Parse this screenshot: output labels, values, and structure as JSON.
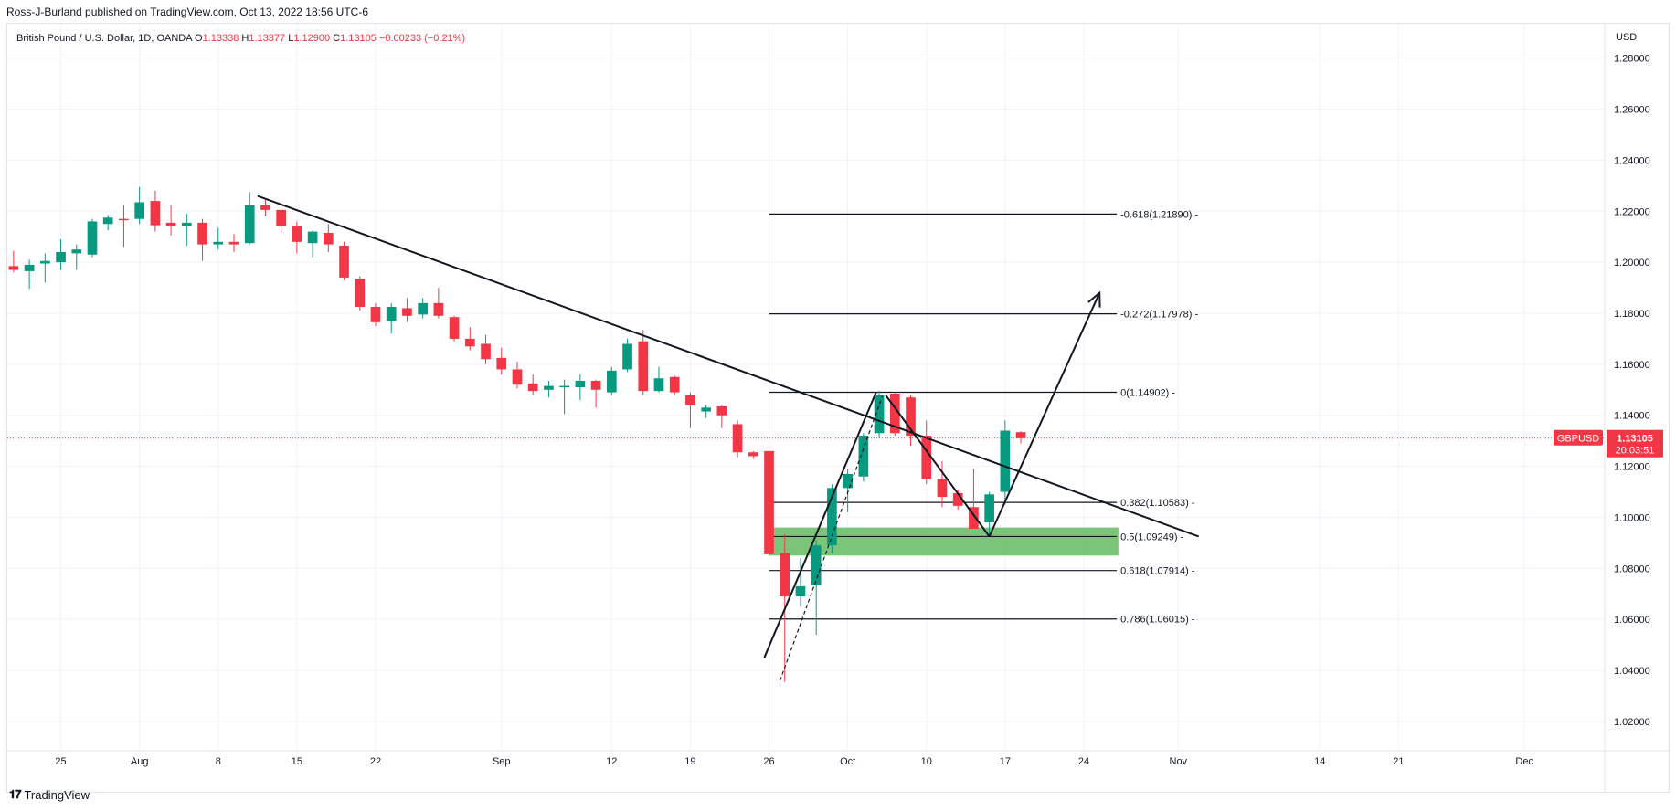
{
  "publisher": "Ross-J-Burland published on TradingView.com, Oct 13, 2022 18:56 UTC-6",
  "legend": {
    "symbol": "British Pound / U.S. Dollar, 1D, OANDA",
    "o_label": "O",
    "o": "1.13338",
    "h_label": "H",
    "h": "1.13377",
    "l_label": "L",
    "l": "1.12900",
    "c_label": "C",
    "c": "1.13105",
    "change": "−0.00233 (−0.21%)"
  },
  "currency": "USD",
  "footer": {
    "logo_text": "TradingView",
    "logo_icon": "tradingview-logo-icon"
  },
  "colors": {
    "up": "#26a69a",
    "up_fill": "#089981",
    "down": "#f23645",
    "zone": "#6bbf6b",
    "last_price": "#f23645",
    "line": "#131722"
  },
  "chart_data": {
    "type": "candlestick",
    "symbol": "GBPUSD",
    "timeframe": "1D",
    "y_ticks": [
      "1.28000",
      "1.26000",
      "1.24000",
      "1.22000",
      "1.20000",
      "1.18000",
      "1.16000",
      "1.14000",
      "1.12000",
      "1.10000",
      "1.08000",
      "1.06000",
      "1.04000",
      "1.02000"
    ],
    "ylim": [
      1.0085,
      1.2935
    ],
    "x_ticks": [
      {
        "label": "25",
        "i": 0
      },
      {
        "label": "Aug",
        "i": 5
      },
      {
        "label": "8",
        "i": 10
      },
      {
        "label": "15",
        "i": 15
      },
      {
        "label": "22",
        "i": 20
      },
      {
        "label": "Sep",
        "i": 28
      },
      {
        "label": "12",
        "i": 35
      },
      {
        "label": "19",
        "i": 40
      },
      {
        "label": "26",
        "i": 45
      },
      {
        "label": "Oct",
        "i": 50
      },
      {
        "label": "10",
        "i": 55
      },
      {
        "label": "17",
        "i": 60
      },
      {
        "label": "24",
        "i": 65
      },
      {
        "label": "Nov",
        "i": 71
      },
      {
        "label": "14",
        "i": 80
      },
      {
        "label": "21",
        "i": 85
      },
      {
        "label": "Dec",
        "i": 93
      }
    ],
    "xlim": [
      -3.4,
      98.1
    ],
    "candles": [
      {
        "i": -3,
        "o": 1.1985,
        "h": 1.2045,
        "l": 1.196,
        "c": 1.197
      },
      {
        "i": -2,
        "o": 1.1965,
        "h": 1.201,
        "l": 1.1895,
        "c": 1.199
      },
      {
        "i": -1,
        "o": 1.1995,
        "h": 1.2035,
        "l": 1.192,
        "c": 1.2005
      },
      {
        "i": 0,
        "o": 1.2,
        "h": 1.209,
        "l": 1.197,
        "c": 1.204
      },
      {
        "i": 1,
        "o": 1.2035,
        "h": 1.207,
        "l": 1.197,
        "c": 1.205
      },
      {
        "i": 2,
        "o": 1.203,
        "h": 1.217,
        "l": 1.202,
        "c": 1.216
      },
      {
        "i": 3,
        "o": 1.215,
        "h": 1.2185,
        "l": 1.2125,
        "c": 1.2175
      },
      {
        "i": 4,
        "o": 1.217,
        "h": 1.2225,
        "l": 1.206,
        "c": 1.2165
      },
      {
        "i": 5,
        "o": 1.217,
        "h": 1.2295,
        "l": 1.215,
        "c": 1.2235
      },
      {
        "i": 6,
        "o": 1.224,
        "h": 1.228,
        "l": 1.212,
        "c": 1.2145
      },
      {
        "i": 7,
        "o": 1.2155,
        "h": 1.2225,
        "l": 1.2105,
        "c": 1.214
      },
      {
        "i": 8,
        "o": 1.214,
        "h": 1.219,
        "l": 1.2065,
        "c": 1.2155
      },
      {
        "i": 9,
        "o": 1.2155,
        "h": 1.217,
        "l": 1.2005,
        "c": 1.207
      },
      {
        "i": 10,
        "o": 1.207,
        "h": 1.2135,
        "l": 1.205,
        "c": 1.208
      },
      {
        "i": 11,
        "o": 1.208,
        "h": 1.211,
        "l": 1.204,
        "c": 1.207
      },
      {
        "i": 12,
        "o": 1.2075,
        "h": 1.2275,
        "l": 1.207,
        "c": 1.2225
      },
      {
        "i": 13,
        "o": 1.2225,
        "h": 1.2245,
        "l": 1.218,
        "c": 1.2205
      },
      {
        "i": 14,
        "o": 1.2205,
        "h": 1.222,
        "l": 1.2115,
        "c": 1.214
      },
      {
        "i": 15,
        "o": 1.214,
        "h": 1.216,
        "l": 1.2035,
        "c": 1.208
      },
      {
        "i": 16,
        "o": 1.2075,
        "h": 1.2125,
        "l": 1.202,
        "c": 1.212
      },
      {
        "i": 17,
        "o": 1.2115,
        "h": 1.215,
        "l": 1.204,
        "c": 1.207
      },
      {
        "i": 18,
        "o": 1.2065,
        "h": 1.208,
        "l": 1.193,
        "c": 1.194
      },
      {
        "i": 19,
        "o": 1.1935,
        "h": 1.1945,
        "l": 1.181,
        "c": 1.1825
      },
      {
        "i": 20,
        "o": 1.1825,
        "h": 1.184,
        "l": 1.175,
        "c": 1.1765
      },
      {
        "i": 21,
        "o": 1.177,
        "h": 1.184,
        "l": 1.172,
        "c": 1.1825
      },
      {
        "i": 22,
        "o": 1.182,
        "h": 1.186,
        "l": 1.1765,
        "c": 1.179
      },
      {
        "i": 23,
        "o": 1.1795,
        "h": 1.186,
        "l": 1.178,
        "c": 1.184
      },
      {
        "i": 24,
        "o": 1.184,
        "h": 1.19,
        "l": 1.178,
        "c": 1.179
      },
      {
        "i": 25,
        "o": 1.1785,
        "h": 1.179,
        "l": 1.169,
        "c": 1.17
      },
      {
        "i": 26,
        "o": 1.17,
        "h": 1.1745,
        "l": 1.1655,
        "c": 1.167
      },
      {
        "i": 27,
        "o": 1.168,
        "h": 1.1715,
        "l": 1.16,
        "c": 1.162
      },
      {
        "i": 28,
        "o": 1.1625,
        "h": 1.1665,
        "l": 1.156,
        "c": 1.158
      },
      {
        "i": 29,
        "o": 1.158,
        "h": 1.161,
        "l": 1.1505,
        "c": 1.152
      },
      {
        "i": 30,
        "o": 1.1525,
        "h": 1.156,
        "l": 1.148,
        "c": 1.1495
      },
      {
        "i": 31,
        "o": 1.15,
        "h": 1.1535,
        "l": 1.147,
        "c": 1.1515
      },
      {
        "i": 32,
        "o": 1.151,
        "h": 1.154,
        "l": 1.1405,
        "c": 1.1515
      },
      {
        "i": 33,
        "o": 1.151,
        "h": 1.156,
        "l": 1.146,
        "c": 1.1535
      },
      {
        "i": 34,
        "o": 1.1535,
        "h": 1.154,
        "l": 1.143,
        "c": 1.15
      },
      {
        "i": 35,
        "o": 1.149,
        "h": 1.159,
        "l": 1.148,
        "c": 1.1575
      },
      {
        "i": 36,
        "o": 1.158,
        "h": 1.17,
        "l": 1.157,
        "c": 1.168
      },
      {
        "i": 37,
        "o": 1.169,
        "h": 1.1735,
        "l": 1.148,
        "c": 1.1495
      },
      {
        "i": 38,
        "o": 1.1495,
        "h": 1.159,
        "l": 1.149,
        "c": 1.1545
      },
      {
        "i": 39,
        "o": 1.155,
        "h": 1.1555,
        "l": 1.148,
        "c": 1.149
      },
      {
        "i": 40,
        "o": 1.148,
        "h": 1.149,
        "l": 1.135,
        "c": 1.144
      },
      {
        "i": 41,
        "o": 1.1415,
        "h": 1.144,
        "l": 1.139,
        "c": 1.143
      },
      {
        "i": 42,
        "o": 1.1435,
        "h": 1.144,
        "l": 1.135,
        "c": 1.14
      },
      {
        "i": 43,
        "o": 1.1365,
        "h": 1.138,
        "l": 1.1235,
        "c": 1.1255
      },
      {
        "i": 44,
        "o": 1.1255,
        "h": 1.126,
        "l": 1.123,
        "c": 1.124
      },
      {
        "i": 45,
        "o": 1.126,
        "h": 1.1275,
        "l": 1.085,
        "c": 1.0855
      },
      {
        "i": 46,
        "o": 1.086,
        "h": 1.0935,
        "l": 1.0355,
        "c": 1.069
      },
      {
        "i": 47,
        "o": 1.069,
        "h": 1.084,
        "l": 1.065,
        "c": 1.073
      },
      {
        "i": 48,
        "o": 1.0735,
        "h": 1.091,
        "l": 1.054,
        "c": 1.089
      },
      {
        "i": 49,
        "o": 1.089,
        "h": 1.113,
        "l": 1.086,
        "c": 1.1115
      },
      {
        "i": 50,
        "o": 1.1115,
        "h": 1.119,
        "l": 1.102,
        "c": 1.117
      },
      {
        "i": 51,
        "o": 1.116,
        "h": 1.133,
        "l": 1.114,
        "c": 1.132
      },
      {
        "i": 52,
        "o": 1.133,
        "h": 1.1495,
        "l": 1.131,
        "c": 1.148
      },
      {
        "i": 53,
        "o": 1.1485,
        "h": 1.149,
        "l": 1.132,
        "c": 1.133
      },
      {
        "i": 54,
        "o": 1.147,
        "h": 1.148,
        "l": 1.128,
        "c": 1.132
      },
      {
        "i": 55,
        "o": 1.132,
        "h": 1.138,
        "l": 1.113,
        "c": 1.115
      },
      {
        "i": 56,
        "o": 1.115,
        "h": 1.122,
        "l": 1.104,
        "c": 1.108
      },
      {
        "i": 57,
        "o": 1.1095,
        "h": 1.111,
        "l": 1.103,
        "c": 1.1045
      },
      {
        "i": 58,
        "o": 1.104,
        "h": 1.119,
        "l": 1.0955,
        "c": 1.0955
      },
      {
        "i": 59,
        "o": 1.098,
        "h": 1.11,
        "l": 1.0925,
        "c": 1.109
      },
      {
        "i": 60,
        "o": 1.11,
        "h": 1.138,
        "l": 1.105,
        "c": 1.134
      },
      {
        "i": 61,
        "o": 1.13338,
        "h": 1.13377,
        "l": 1.129,
        "c": 1.13105
      }
    ],
    "last_price": {
      "label": "GBPUSD",
      "value": "1.13105",
      "countdown": "20:03:51",
      "y": 1.13105
    },
    "fib_levels": [
      {
        "label": "-0.618(1.21890)",
        "y": 1.2189
      },
      {
        "label": "-0.272(1.17978)",
        "y": 1.17978
      },
      {
        "label": "0(1.14902)",
        "y": 1.14902
      },
      {
        "label": "0.382(1.10583)",
        "y": 1.10583
      },
      {
        "label": "0.5(1.09249)",
        "y": 1.09249
      },
      {
        "label": "0.618(1.07914)",
        "y": 1.07914
      },
      {
        "label": "0.786(1.06015)",
        "y": 1.06015
      }
    ],
    "fib_range": {
      "x1": 45.0,
      "x2": 67.1
    },
    "demand_zone": {
      "x1": 45.0,
      "x2": 67.2,
      "y_top": 1.096,
      "y_bottom": 1.085
    },
    "trendlines": [
      {
        "name": "downtrend",
        "x1": 12.5,
        "y1": 1.226,
        "x2": 72.3,
        "y2": 1.0925
      },
      {
        "name": "impulse-up",
        "x1": 44.7,
        "y1": 1.045,
        "x2": 51.8,
        "y2": 1.149
      },
      {
        "name": "fib-anchor-dashed",
        "x1": 45.7,
        "y1": 1.036,
        "x2": 52.2,
        "y2": 1.1475,
        "dashed": true
      },
      {
        "name": "pullback",
        "x1": 52.4,
        "y1": 1.148,
        "x2": 59.0,
        "y2": 1.0925
      },
      {
        "name": "projection-arrow",
        "x1": 59.0,
        "y1": 1.0925,
        "x2": 66.0,
        "y2": 1.188,
        "arrow": true
      }
    ]
  }
}
